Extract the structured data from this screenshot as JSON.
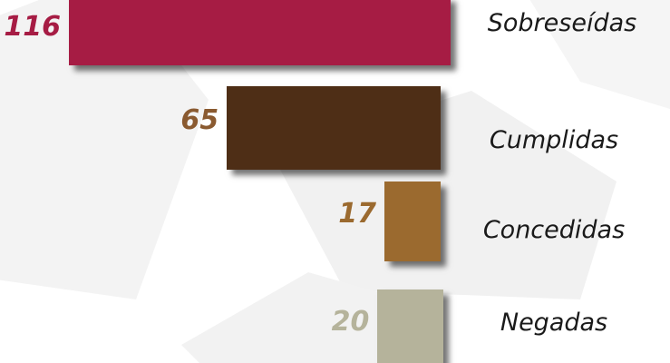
{
  "chart_data": {
    "type": "bar",
    "orientation": "horizontal",
    "categories": [
      "Sobreseídas",
      "Cumplidas",
      "Concedidas",
      "Negadas"
    ],
    "values": [
      116,
      65,
      17,
      20
    ],
    "colors": [
      "#a61c44",
      "#4e2e16",
      "#9b6a2f",
      "#b5b39b"
    ],
    "label_colors": [
      "#a61c44",
      "#8a5a30",
      "#9b6a2f",
      "#b5b39b"
    ],
    "bar_alignment": "right",
    "grid": false,
    "legend": "none"
  }
}
